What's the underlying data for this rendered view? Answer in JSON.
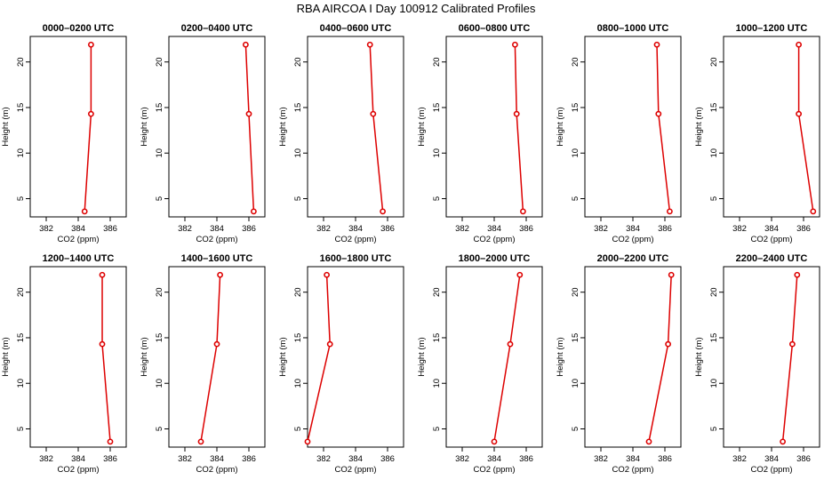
{
  "figure_title": "RBA AIRCOA I  Day 100912  Calibrated Profiles",
  "chart_data": {
    "type": "line",
    "xlabel": "CO2 (ppm)",
    "ylabel": "Height (m)",
    "xlim": [
      381,
      387
    ],
    "ylim": [
      3,
      22.8
    ],
    "xticks": [
      382,
      384,
      386
    ],
    "yticks": [
      5,
      10,
      15,
      20
    ],
    "heights": [
      3.6,
      14.3,
      21.9
    ],
    "line_color": "#dd0000",
    "marker_color": "#dd0000",
    "panels": [
      {
        "title": "0000–0200 UTC",
        "x": [
          384.4,
          384.8,
          384.8
        ]
      },
      {
        "title": "0200–0400 UTC",
        "x": [
          386.3,
          386.0,
          385.8
        ]
      },
      {
        "title": "0400–0600 UTC",
        "x": [
          385.7,
          385.1,
          384.9
        ]
      },
      {
        "title": "0600–0800 UTC",
        "x": [
          385.8,
          385.4,
          385.3
        ]
      },
      {
        "title": "0800–1000 UTC",
        "x": [
          386.3,
          385.6,
          385.5
        ]
      },
      {
        "title": "1000–1200 UTC",
        "x": [
          386.6,
          385.7,
          385.7
        ]
      },
      {
        "title": "1200–1400 UTC",
        "x": [
          386.0,
          385.5,
          385.5
        ]
      },
      {
        "title": "1400–1600 UTC",
        "x": [
          383.0,
          384.0,
          384.2
        ]
      },
      {
        "title": "1600–1800 UTC",
        "x": [
          381.0,
          382.4,
          382.2
        ]
      },
      {
        "title": "1800–2000 UTC",
        "x": [
          384.0,
          385.0,
          385.6
        ]
      },
      {
        "title": "2000–2200 UTC",
        "x": [
          385.0,
          386.2,
          386.4
        ]
      },
      {
        "title": "2200–2400 UTC",
        "x": [
          384.7,
          385.3,
          385.6
        ]
      }
    ]
  }
}
